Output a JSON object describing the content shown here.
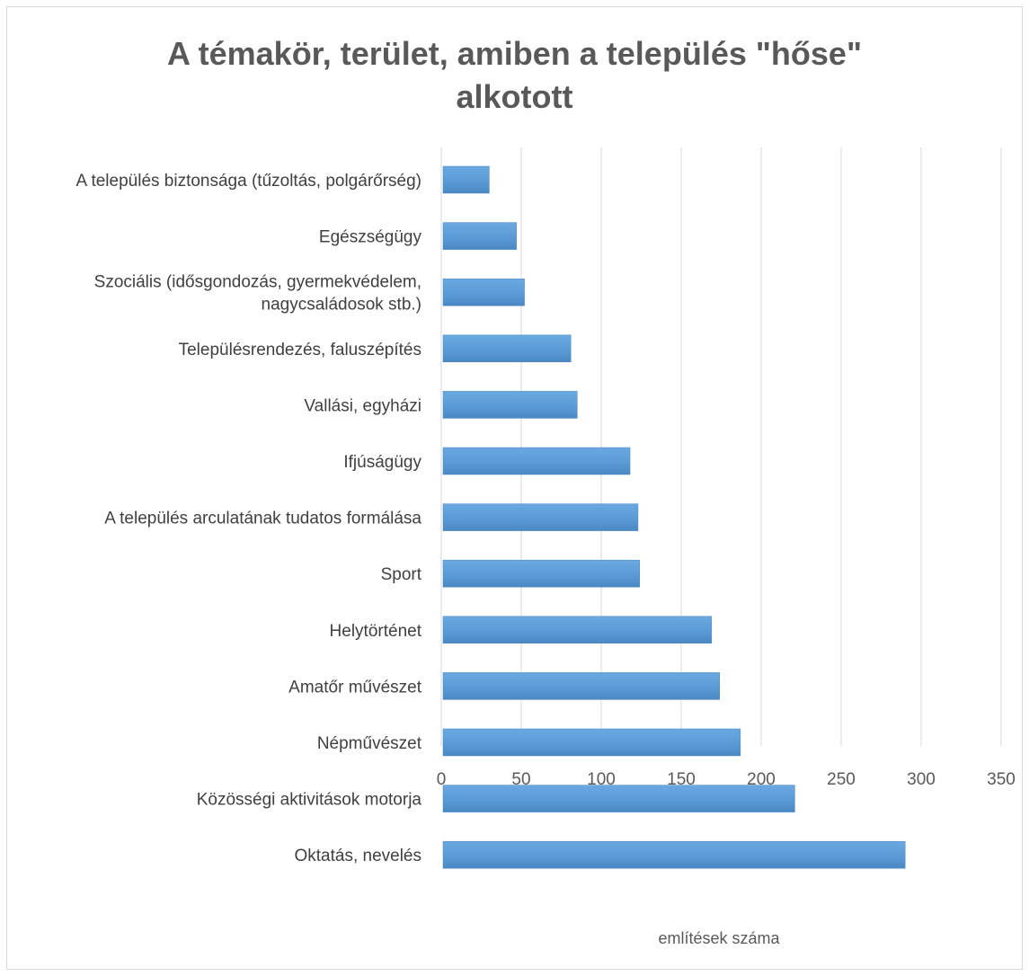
{
  "chart_data": {
    "type": "bar",
    "orientation": "horizontal",
    "title": "A témakör, terület, amiben a település \"hőse\" alkotott",
    "title_lines": [
      "A témakör, terület, amiben a település \"hőse\"",
      "alkotott"
    ],
    "xlabel": "említések száma",
    "ylabel": "",
    "xlim": [
      0,
      350
    ],
    "xticks": [
      0,
      50,
      100,
      150,
      200,
      250,
      300,
      350
    ],
    "grid": true,
    "legend": "none",
    "bar_color": "#5b9bd5",
    "categories": [
      "A település biztonsága (tűzoltás, polgárőrség)",
      "Egészségügy",
      "Szociális (idősgondozás, gyermekvédelem, nagycsaládosok stb.)",
      "Településrendezés, faluszépítés",
      "Vallási, egyházi",
      "Ifjúságügy",
      "A település arculatának tudatos formálása",
      "Sport",
      "Helytörténet",
      "Amatőr művészet",
      "Népművészet",
      "Közösségi aktivitások motorja",
      "Oktatás, nevelés"
    ],
    "category_lines": [
      [
        "A település biztonsága (tűzoltás, polgárőrség)"
      ],
      [
        "Egészségügy"
      ],
      [
        "Szociális (idősgondozás, gyermekvédelem,",
        "nagycsaládosok stb.)"
      ],
      [
        "Településrendezés, faluszépítés"
      ],
      [
        "Vallási, egyházi"
      ],
      [
        "Ifjúságügy"
      ],
      [
        "A település arculatának tudatos formálása"
      ],
      [
        "Sport"
      ],
      [
        "Helytörténet"
      ],
      [
        "Amatőr művészet"
      ],
      [
        "Népművészet"
      ],
      [
        "Közösségi aktivitások motorja"
      ],
      [
        "Oktatás, nevelés"
      ]
    ],
    "values": [
      30,
      47,
      52,
      81,
      85,
      118,
      123,
      124,
      169,
      174,
      187,
      221,
      290
    ]
  }
}
